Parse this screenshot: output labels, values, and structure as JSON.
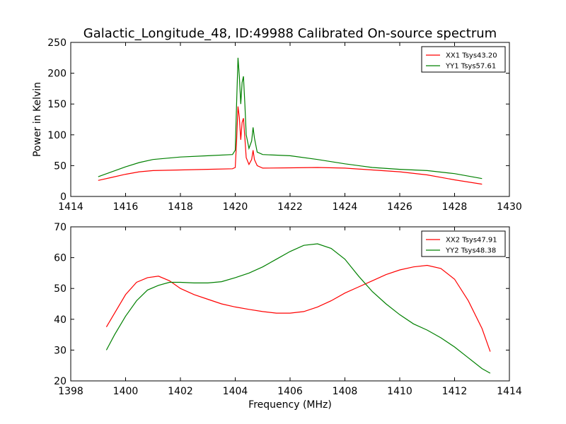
{
  "figure": {
    "title": "Galactic_Longitude_48, ID:49988 Calibrated On-source spectrum"
  },
  "chart_data": [
    {
      "type": "line",
      "title": "",
      "xlabel": "",
      "ylabel": "Power in Kelvin",
      "xlim": [
        1414,
        1430
      ],
      "ylim": [
        0,
        250
      ],
      "xticks": [
        1414,
        1416,
        1418,
        1420,
        1422,
        1424,
        1426,
        1428,
        1430
      ],
      "yticks": [
        0,
        50,
        100,
        150,
        200,
        250
      ],
      "grid": false,
      "legend": "top-right",
      "series": [
        {
          "name": "XX1 Tsys43.20",
          "color": "#ff0000",
          "x": [
            1415,
            1415.5,
            1416,
            1416.5,
            1417,
            1418,
            1419,
            1419.9,
            1420.0,
            1420.05,
            1420.1,
            1420.15,
            1420.2,
            1420.25,
            1420.3,
            1420.35,
            1420.4,
            1420.5,
            1420.6,
            1420.65,
            1420.7,
            1420.8,
            1421,
            1422,
            1423,
            1424,
            1425,
            1426,
            1427,
            1428,
            1429
          ],
          "y": [
            26,
            31,
            36,
            40,
            42,
            43,
            44,
            45,
            47,
            90,
            146,
            128,
            92,
            120,
            127,
            95,
            63,
            52,
            60,
            75,
            60,
            50,
            46,
            46.5,
            47,
            46,
            43,
            40,
            35,
            27,
            20
          ]
        },
        {
          "name": "YY1 Tsys57.61",
          "color": "#008000",
          "x": [
            1415,
            1415.5,
            1416,
            1416.5,
            1417,
            1418,
            1419,
            1419.9,
            1420.0,
            1420.05,
            1420.1,
            1420.15,
            1420.2,
            1420.25,
            1420.3,
            1420.35,
            1420.4,
            1420.5,
            1420.6,
            1420.65,
            1420.7,
            1420.8,
            1421,
            1422,
            1423,
            1424,
            1425,
            1426,
            1427,
            1428,
            1429
          ],
          "y": [
            32,
            40,
            48,
            55,
            60,
            64,
            66,
            68,
            75,
            150,
            225,
            195,
            150,
            185,
            195,
            150,
            100,
            78,
            90,
            112,
            95,
            72,
            68,
            66,
            60,
            53,
            47,
            44,
            42,
            37,
            29
          ]
        }
      ]
    },
    {
      "type": "line",
      "title": "",
      "xlabel": "Frequency (MHz)",
      "ylabel": "",
      "xlim": [
        1398,
        1414
      ],
      "ylim": [
        20,
        70
      ],
      "xticks": [
        1398,
        1400,
        1402,
        1404,
        1406,
        1408,
        1410,
        1412,
        1414
      ],
      "yticks": [
        20,
        30,
        40,
        50,
        60,
        70
      ],
      "grid": false,
      "legend": "top-right",
      "series": [
        {
          "name": "XX2 Tsys47.91",
          "color": "#ff0000",
          "x": [
            1399.3,
            1399.6,
            1400,
            1400.4,
            1400.8,
            1401.2,
            1401.6,
            1402,
            1402.5,
            1403,
            1403.5,
            1404,
            1404.5,
            1405,
            1405.5,
            1406,
            1406.5,
            1407,
            1407.5,
            1408,
            1408.5,
            1409,
            1409.5,
            1410,
            1410.5,
            1411,
            1411.5,
            1412,
            1412.5,
            1413,
            1413.3
          ],
          "y": [
            37.5,
            42,
            48,
            52,
            53.5,
            54,
            52.5,
            50,
            48,
            46.5,
            45,
            44,
            43.2,
            42.5,
            42,
            42,
            42.5,
            44,
            46,
            48.5,
            50.5,
            52.5,
            54.5,
            56,
            57,
            57.5,
            56.5,
            53,
            46,
            37,
            29.5
          ]
        },
        {
          "name": "YY2 Tsys48.38",
          "color": "#008000",
          "x": [
            1399.3,
            1399.6,
            1400,
            1400.4,
            1400.8,
            1401.2,
            1401.6,
            1402,
            1402.5,
            1403,
            1403.5,
            1404,
            1404.5,
            1405,
            1405.5,
            1406,
            1406.5,
            1407,
            1407.5,
            1408,
            1408.5,
            1409,
            1409.5,
            1410,
            1410.5,
            1411,
            1411.5,
            1412,
            1412.5,
            1413,
            1413.3
          ],
          "y": [
            30,
            35,
            41,
            46,
            49.5,
            51,
            52,
            52,
            51.8,
            51.8,
            52.2,
            53.5,
            55,
            57,
            59.5,
            62,
            64,
            64.5,
            63,
            59.5,
            54,
            49,
            45,
            41.5,
            38.5,
            36.5,
            34,
            31,
            27.5,
            24,
            22.5
          ]
        }
      ]
    }
  ]
}
